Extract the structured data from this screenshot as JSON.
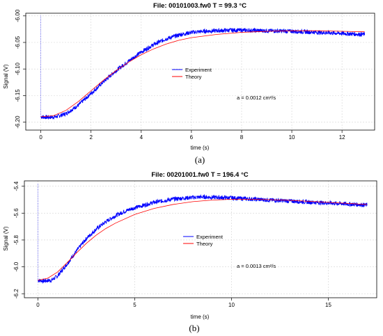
{
  "chart_data": [
    {
      "type": "line",
      "panel_label": "(a)",
      "title": "File:  00101003.fw0  T =  99.3 °C",
      "xlabel": "time (s)",
      "ylabel": "Signal (V)",
      "xlim": [
        -0.6,
        13.3
      ],
      "ylim": [
        -6.215,
        -5.995
      ],
      "xticks": [
        0,
        2,
        4,
        6,
        8,
        10,
        12
      ],
      "yticks": [
        -6.2,
        -6.15,
        -6.1,
        -6.05,
        -6.0
      ],
      "ytick_labels": [
        "-6.20",
        "-6.15",
        "-6.10",
        "-6.05",
        "-6.00"
      ],
      "grid": true,
      "legend_position": "center",
      "annotation": "a =  0.0012 cm²/s",
      "series": [
        {
          "name": "Experiment",
          "color": "#0000ff",
          "x": [
            0,
            0.3,
            0.6,
            1.0,
            1.5,
            2.0,
            2.5,
            3.0,
            3.5,
            4.0,
            4.5,
            5.0,
            5.5,
            6.0,
            6.5,
            7.0,
            7.5,
            8.0,
            9.0,
            10.0,
            11.0,
            12.0,
            12.9
          ],
          "y": [
            -6.19,
            -6.191,
            -6.19,
            -6.184,
            -6.168,
            -6.146,
            -6.124,
            -6.103,
            -6.085,
            -6.068,
            -6.054,
            -6.043,
            -6.036,
            -6.031,
            -6.029,
            -6.028,
            -6.027,
            -6.027,
            -6.028,
            -6.029,
            -6.031,
            -6.033,
            -6.035
          ]
        },
        {
          "name": "Theory",
          "color": "#ff0000",
          "x": [
            0,
            0.5,
            1.0,
            1.5,
            2.0,
            2.5,
            3.0,
            3.5,
            4.0,
            4.5,
            5.0,
            5.5,
            6.0,
            7.0,
            8.0,
            9.0,
            10.0,
            11.0,
            12.0,
            12.9
          ],
          "y": [
            -6.19,
            -6.188,
            -6.178,
            -6.161,
            -6.141,
            -6.121,
            -6.103,
            -6.087,
            -6.073,
            -6.062,
            -6.053,
            -6.046,
            -6.041,
            -6.035,
            -6.031,
            -6.029,
            -6.028,
            -6.028,
            -6.029,
            -6.03
          ]
        }
      ]
    },
    {
      "type": "line",
      "panel_label": "(b)",
      "title": "File:  00201001.fw0  T =  196.4 °C",
      "xlabel": "time (s)",
      "ylabel": "Signal (V)",
      "xlim": [
        -0.7,
        17.5
      ],
      "ylim": [
        -6.23,
        -5.36
      ],
      "xticks": [
        0,
        5,
        10,
        15
      ],
      "yticks": [
        -6.2,
        -6.0,
        -5.8,
        -5.6,
        -5.4
      ],
      "ytick_labels": [
        "-6.2",
        "-6.0",
        "-5.8",
        "-5.6",
        "-5.4"
      ],
      "grid": true,
      "legend_position": "center",
      "annotation": "a =  0.0013 cm²/s",
      "series": [
        {
          "name": "Experiment",
          "color": "#0000ff",
          "x": [
            0,
            0.3,
            0.7,
            1.0,
            1.5,
            2.0,
            2.5,
            3.0,
            3.5,
            4.0,
            4.5,
            5.0,
            6.0,
            7.0,
            8.0,
            8.5,
            9.0,
            10.0,
            11.0,
            12.0,
            13.0,
            14.0,
            15.0,
            16.0,
            17.0
          ],
          "y": [
            -6.1,
            -6.105,
            -6.1,
            -6.07,
            -5.98,
            -5.88,
            -5.79,
            -5.72,
            -5.665,
            -5.62,
            -5.585,
            -5.56,
            -5.52,
            -5.495,
            -5.483,
            -5.48,
            -5.482,
            -5.487,
            -5.495,
            -5.503,
            -5.51,
            -5.518,
            -5.525,
            -5.532,
            -5.54
          ]
        },
        {
          "name": "Theory",
          "color": "#ff0000",
          "x": [
            0,
            0.5,
            1.0,
            1.5,
            2.0,
            2.5,
            3.0,
            3.5,
            4.0,
            5.0,
            6.0,
            7.0,
            8.0,
            9.0,
            10.0,
            11.0,
            12.0,
            13.0,
            14.0,
            15.0,
            16.0,
            17.0
          ],
          "y": [
            -6.1,
            -6.085,
            -6.04,
            -5.97,
            -5.895,
            -5.825,
            -5.765,
            -5.715,
            -5.675,
            -5.61,
            -5.565,
            -5.535,
            -5.515,
            -5.503,
            -5.497,
            -5.497,
            -5.5,
            -5.505,
            -5.512,
            -5.52,
            -5.528,
            -5.536
          ]
        }
      ]
    }
  ]
}
